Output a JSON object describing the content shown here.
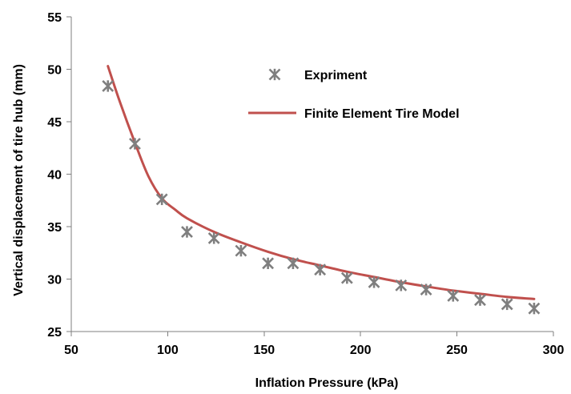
{
  "chart_data": {
    "type": "scatter",
    "title": "",
    "xlabel": "Inflation Pressure (kPa)",
    "ylabel": "Vertical displacement of tire hub (mm)",
    "xlim": [
      50,
      300
    ],
    "ylim": [
      25,
      55
    ],
    "xticks": [
      50,
      100,
      150,
      200,
      250,
      300
    ],
    "yticks": [
      25,
      30,
      35,
      40,
      45,
      50,
      55
    ],
    "grid": false,
    "legend_position": "top-right",
    "series": [
      {
        "name": "Expriment",
        "kind": "scatter",
        "marker": "asterisk",
        "color": "#7f7f7f",
        "x": [
          69,
          83,
          97,
          110,
          124,
          138,
          152,
          165,
          179,
          193,
          207,
          221,
          234,
          248,
          262,
          276,
          290
        ],
        "y": [
          48.4,
          42.9,
          37.6,
          34.5,
          33.9,
          32.7,
          31.5,
          31.5,
          30.9,
          30.1,
          29.7,
          29.4,
          29.0,
          28.4,
          28.0,
          27.6,
          27.2
        ]
      },
      {
        "name": "Finite Element Tire Model",
        "kind": "line",
        "color": "#c0504d",
        "x": [
          69,
          75,
          83,
          90,
          97,
          104,
          110,
          124,
          138,
          152,
          165,
          179,
          193,
          207,
          221,
          234,
          248,
          262,
          276,
          290
        ],
        "y": [
          50.3,
          47.0,
          43.0,
          39.8,
          37.7,
          36.6,
          35.8,
          34.5,
          33.5,
          32.6,
          31.9,
          31.3,
          30.7,
          30.2,
          29.7,
          29.3,
          28.9,
          28.6,
          28.3,
          28.1
        ]
      }
    ]
  }
}
